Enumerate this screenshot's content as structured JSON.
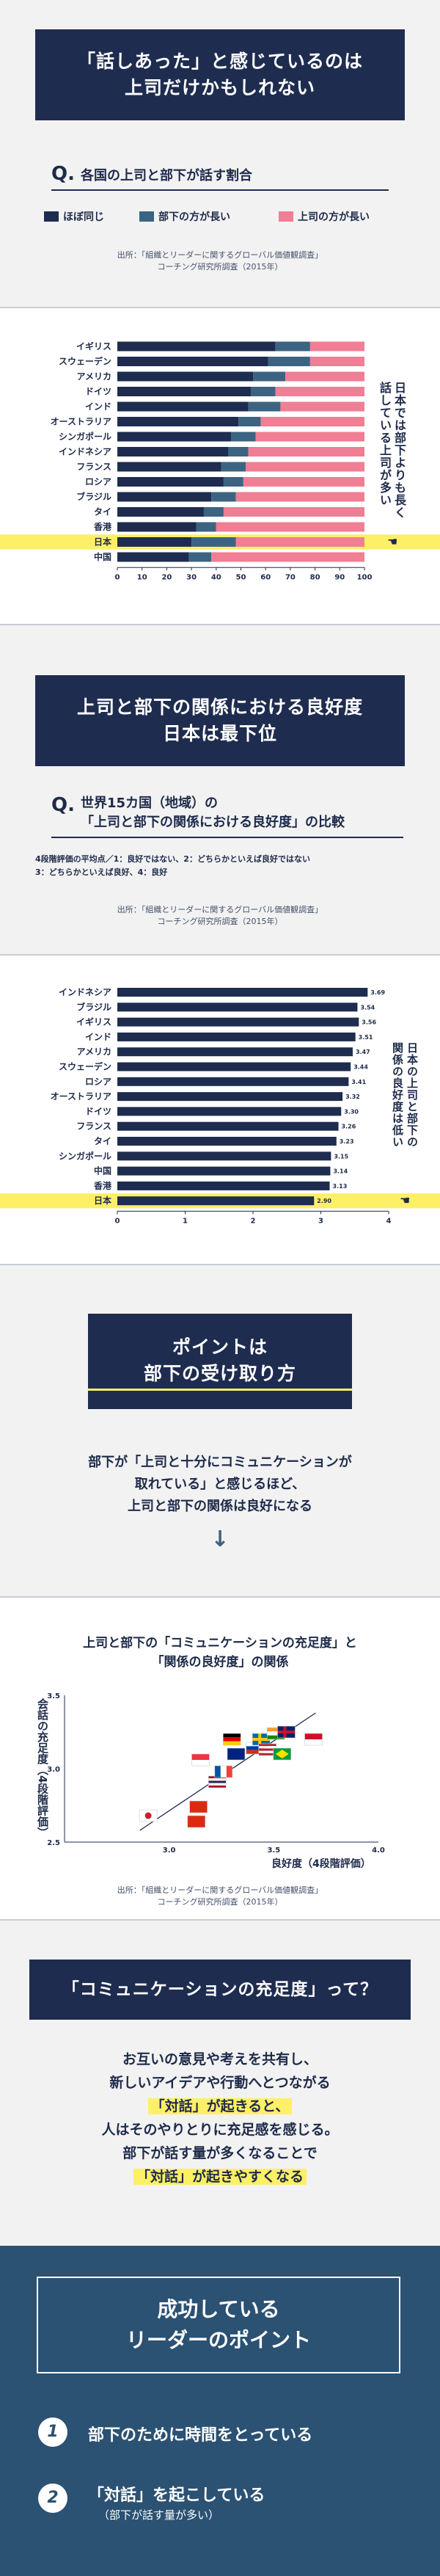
{
  "s1": {
    "title": [
      "「話しあった」と感じているのは",
      "上司だけかもしれない"
    ],
    "q_mark": "Q.",
    "q_text": "各国の上司と部下が話す割合",
    "legend": [
      "ほぼ同じ",
      "部下の方が長い",
      "上司の方が長い"
    ],
    "source": [
      "出所：「組織とリーダーに関するグローバル価値観調査」",
      "コーチング研究所調査（2015年）"
    ],
    "note": [
      "日本では部下よりも長く",
      "話している上司が多い"
    ]
  },
  "s2": {
    "title": [
      "上司と部下の関係における良好度",
      "日本は最下位"
    ],
    "q_mark": "Q.",
    "q_text": [
      "世界15カ国（地域）の",
      "「上司と部下の関係における良好度」の比較"
    ],
    "desc": [
      "4段階評価の平均点／1：良好ではない、2：どちらかといえば良好ではない",
      "3：どちらかといえば良好、4：良好"
    ],
    "source": [
      "出所：「組織とリーダーに関するグローバル価値観調査」",
      "コーチング研究所調査（2015年）"
    ],
    "note": [
      "日本の上司と部下の",
      "関係の良好度は低い"
    ]
  },
  "s3": {
    "title_a": "ポイントは",
    "title_b": "部下の受け取り方",
    "body": [
      "部下が「上司と十分にコミュニケーションが",
      "取れている」と感じるほど、",
      "上司と部下の関係は良好になる"
    ],
    "arrow": "↓"
  },
  "s4": {
    "title": [
      "上司と部下の「コミュニケーションの充足度」と",
      "「関係の良好度」の関係"
    ],
    "source": [
      "出所：「組織とリーダーに関するグローバル価値観調査」",
      "コーチング研究所調査（2015年）"
    ]
  },
  "s5": {
    "title": "「コミュニケーションの充足度」って？",
    "lines": [
      "お互いの意見や考えを共有し、",
      "新しいアイデアや行動へとつながる",
      "「対話」が起きると、",
      "人はそのやりとりに充足感を感じる。",
      "部下が話す量が多くなることで",
      "「対話」が起きやすくなる"
    ]
  },
  "s6": {
    "title": [
      "成功している",
      "リーダーのポイント"
    ],
    "items": [
      {
        "num": "1",
        "text": "部下のために時間をとっている",
        "sub": ""
      },
      {
        "num": "2",
        "text": "「対話」を起こしている",
        "sub": "（部下が話す量が多い）"
      }
    ]
  },
  "colors": {
    "navy": "#1e2c4f",
    "teal": "#3c6482",
    "pink": "#f07e94",
    "yellow": "#fdf066"
  },
  "chart_data": [
    {
      "type": "bar",
      "orientation": "horizontal-stacked",
      "categories": [
        "イギリス",
        "スウェーデン",
        "アメリカ",
        "ドイツ",
        "インド",
        "オーストラリア",
        "シンガポール",
        "インドネシア",
        "フランス",
        "ロシア",
        "ブラジル",
        "タイ",
        "香港",
        "日本",
        "中国"
      ],
      "series": [
        {
          "name": "ほぼ同じ",
          "values": [
            64,
            61,
            55,
            54,
            53,
            49,
            46,
            45,
            42,
            43,
            38,
            35,
            32,
            30,
            29
          ]
        },
        {
          "name": "部下の方が長い",
          "values": [
            14,
            17,
            13,
            10,
            13,
            9,
            10,
            8,
            10,
            8,
            10,
            8,
            8,
            18,
            9
          ]
        },
        {
          "name": "上司の方が長い",
          "values": [
            22,
            22,
            32,
            36,
            34,
            42,
            44,
            47,
            48,
            49,
            52,
            57,
            60,
            52,
            62
          ]
        }
      ],
      "highlight": "日本",
      "xlim": [
        0,
        100
      ],
      "xticks": [
        "0",
        "10",
        "20",
        "30",
        "40",
        "50",
        "60",
        "70",
        "80",
        "90",
        "100"
      ]
    },
    {
      "type": "bar",
      "orientation": "horizontal",
      "categories": [
        "インドネシア",
        "ブラジル",
        "イギリス",
        "インド",
        "アメリカ",
        "スウェーデン",
        "ロシア",
        "オーストラリア",
        "ドイツ",
        "フランス",
        "タイ",
        "シンガポール",
        "中国",
        "香港",
        "日本"
      ],
      "values": [
        3.69,
        3.54,
        3.56,
        3.51,
        3.47,
        3.44,
        3.41,
        3.32,
        3.3,
        3.26,
        3.23,
        3.15,
        3.14,
        3.13,
        2.9
      ],
      "labels": [
        "3.69",
        "3.54",
        "3.56",
        "3.51",
        "3.47",
        "3.44",
        "3.41",
        "3.32",
        "3.30",
        "3.26",
        "3.23",
        "3.15",
        "3.14",
        "3.13",
        "2.90"
      ],
      "highlight": "日本",
      "xlim": [
        0,
        4
      ],
      "xticks": [
        "0",
        "1",
        "2",
        "3",
        "4"
      ]
    },
    {
      "type": "scatter",
      "xlabel": "良好度（4段階評価）",
      "ylabel": "会話の充足度（4段階評価）",
      "xlim": [
        2.5,
        4.0
      ],
      "ylim": [
        2.5,
        3.5
      ],
      "xticks": [
        "3.0",
        "3.5",
        "4.0"
      ],
      "yticks": [
        "3.5",
        "3.0",
        "2.5"
      ],
      "trendline": true,
      "points": [
        {
          "x": 2.9,
          "y": 2.68,
          "flag": "japan"
        },
        {
          "x": 3.13,
          "y": 2.64,
          "flag": "hongkong"
        },
        {
          "x": 3.14,
          "y": 2.74,
          "flag": "china"
        },
        {
          "x": 3.15,
          "y": 3.06,
          "flag": "singapore"
        },
        {
          "x": 3.23,
          "y": 2.91,
          "flag": "thailand"
        },
        {
          "x": 3.26,
          "y": 2.98,
          "flag": "france"
        },
        {
          "x": 3.3,
          "y": 3.2,
          "flag": "germany"
        },
        {
          "x": 3.32,
          "y": 3.1,
          "flag": "australia"
        },
        {
          "x": 3.41,
          "y": 3.14,
          "flag": "russia"
        },
        {
          "x": 3.44,
          "y": 3.2,
          "flag": "sweden"
        },
        {
          "x": 3.47,
          "y": 3.13,
          "flag": "usa"
        },
        {
          "x": 3.51,
          "y": 3.24,
          "flag": "india"
        },
        {
          "x": 3.54,
          "y": 3.1,
          "flag": "brazil"
        },
        {
          "x": 3.56,
          "y": 3.25,
          "flag": "uk"
        },
        {
          "x": 3.69,
          "y": 3.2,
          "flag": "indonesia"
        }
      ]
    }
  ]
}
